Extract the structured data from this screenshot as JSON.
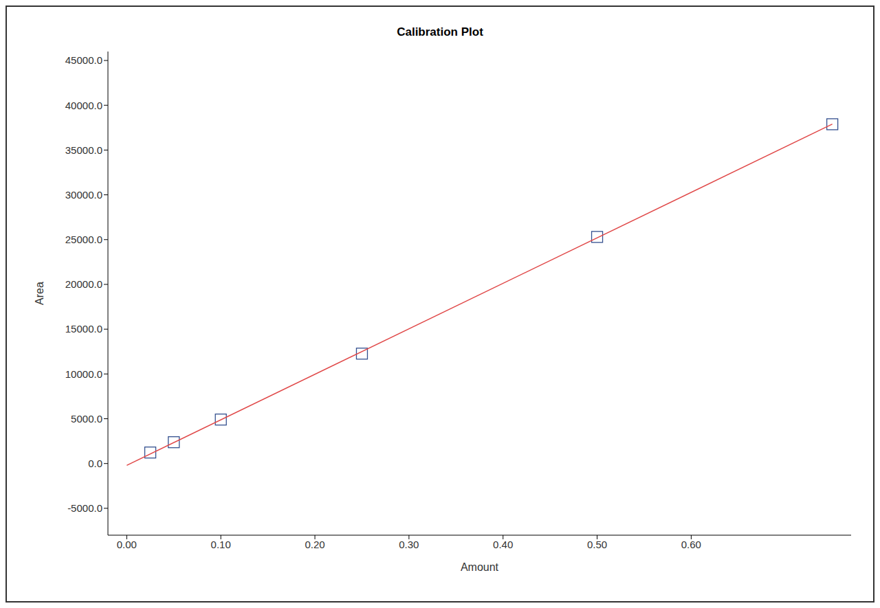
{
  "chart_data": {
    "type": "scatter",
    "title": "Calibration Plot",
    "x_label": "Amount",
    "y_label": "Area",
    "series": [
      {
        "type": "scatter",
        "marker": "square",
        "color": "#34508f",
        "x": [
          0.025,
          0.05,
          0.1,
          0.25,
          0.5,
          0.75
        ],
        "values": [
          1230,
          2380,
          4910,
          12270,
          25300,
          37880
        ]
      },
      {
        "type": "line",
        "line_style": "solid",
        "color": "#e04848",
        "x": [
          0,
          0.75
        ],
        "values": [
          -200,
          37900
        ]
      }
    ],
    "xlim": [
      -0.02,
      0.77
    ],
    "xticks": [
      {
        "value": 0,
        "label": "0.00"
      },
      {
        "value": 0.1,
        "label": "0.10"
      },
      {
        "value": 0.2,
        "label": "0.20"
      },
      {
        "value": 0.3,
        "label": "0.30"
      },
      {
        "value": 0.4,
        "label": "0.40"
      },
      {
        "value": 0.5,
        "label": "0.50"
      },
      {
        "value": 0.6,
        "label": "0.60"
      }
    ],
    "ylim": [
      -8000,
      46000
    ],
    "yticks": [
      {
        "value": -5000,
        "label": "-5000.0"
      },
      {
        "value": 0,
        "label": "0.0"
      },
      {
        "value": 5000,
        "label": "5000.0"
      },
      {
        "value": 10000,
        "label": "10000.0"
      },
      {
        "value": 15000,
        "label": "15000.0"
      },
      {
        "value": 20000,
        "label": "20000.0"
      },
      {
        "value": 25000,
        "label": "25000.0"
      },
      {
        "value": 30000,
        "label": "30000.0"
      },
      {
        "value": 35000,
        "label": "35000.0"
      },
      {
        "value": 40000,
        "label": "40000.0"
      },
      {
        "value": 45000,
        "label": "45000.0"
      }
    ],
    "grid": false
  }
}
